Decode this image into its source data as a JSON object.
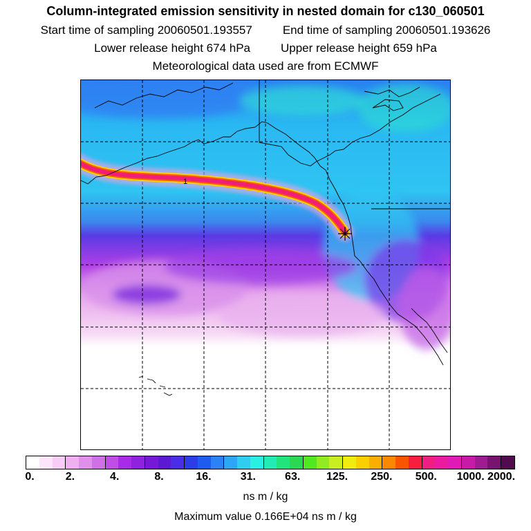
{
  "header": {
    "title": "Column-integrated emission sensitivity in nested domain for c130_060501",
    "start_label": "Start time of sampling 20060501.193557",
    "end_label": "End time of sampling 20060501.193626",
    "lower_label": "Lower release height  674 hPa",
    "upper_label": "Upper release height  659 hPa",
    "met_label": "Meteorological data used are from ECMWF"
  },
  "colorbar": {
    "colors": [
      "#ffffff",
      "#fde6fb",
      "#f7ccf5",
      "#eeb0ee",
      "#e090ea",
      "#d070e6",
      "#bf4ee6",
      "#aa2be6",
      "#8e22dd",
      "#7519d6",
      "#5c19d2",
      "#4a2de8",
      "#2a3de8",
      "#1e5cf0",
      "#2a82f5",
      "#2ea6f5",
      "#30cdf2",
      "#2af0e4",
      "#20ecb4",
      "#20e47c",
      "#2ad852",
      "#50e820",
      "#90ec20",
      "#c8f020",
      "#f0ec10",
      "#fcd000",
      "#fcae00",
      "#fa8800",
      "#fa5400",
      "#f81e40",
      "#f01e80",
      "#ec1aa0",
      "#e01ab4",
      "#c81aa8",
      "#a01a92",
      "#781470",
      "#500c4c"
    ],
    "tick_labels": [
      "0.",
      "2.",
      "4.",
      "8.",
      "16.",
      "31.",
      "63.",
      "125.",
      "250.",
      "500.",
      "1000.",
      "2000."
    ],
    "unit": "ns m / kg"
  },
  "footer": {
    "max_value": "Maximum value  0.166E+04 ns m / kg"
  },
  "map": {
    "release_point_icon": "asterisk-icon",
    "contour_label": "1"
  }
}
